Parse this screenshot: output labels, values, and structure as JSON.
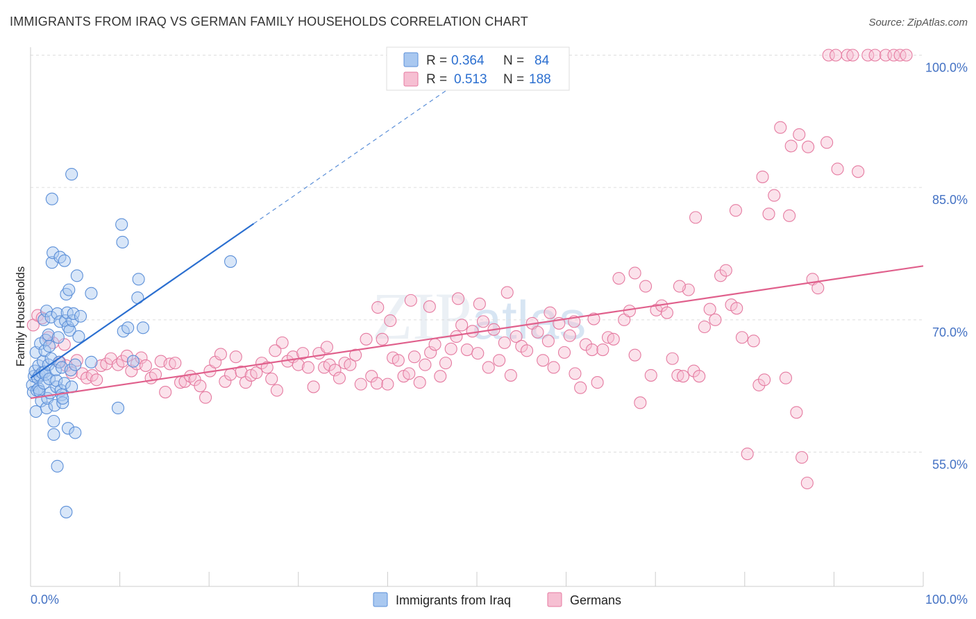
{
  "title": "IMMIGRANTS FROM IRAQ VS GERMAN FAMILY HOUSEHOLDS CORRELATION CHART",
  "source": "Source: ZipAtlas.com",
  "watermark": "ZIPatlas",
  "colors": {
    "iraq": "#5b8fd8",
    "iraq_fill": "#a9c8f0",
    "iraq_line": "#2b6fd0",
    "germans": "#e57aa0",
    "germans_fill": "#f6bfd2",
    "germans_line": "#e0608c",
    "grid": "#dddddd",
    "tick_text": "#4472c4"
  },
  "legend": {
    "iraq": {
      "r_label": "R =",
      "r_value": "0.364",
      "n_label": "N =",
      "n_value": "84"
    },
    "germans": {
      "r_label": "R =",
      "r_value": "0.513",
      "n_label": "N =",
      "n_value": "188"
    }
  },
  "bottom_legend": {
    "iraq": "Immigrants from Iraq",
    "germans": "Germans"
  },
  "chart_data": {
    "type": "scatter",
    "title": "IMMIGRANTS FROM IRAQ VS GERMAN FAMILY HOUSEHOLDS CORRELATION CHART",
    "xlabel": "",
    "ylabel": "Family Households",
    "xlim": [
      0,
      100
    ],
    "ylim": [
      40,
      101.5
    ],
    "x_tick_labels": [
      "0.0%",
      "100.0%"
    ],
    "y_ticks": [
      55,
      70,
      85,
      100
    ],
    "y_tick_labels": [
      "55.0%",
      "70.0%",
      "85.0%",
      "100.0%"
    ],
    "grid": "horizontal dashed",
    "legend_position": "top-center",
    "series": [
      {
        "name": "Immigrants from Iraq",
        "R": 0.364,
        "N": 84,
        "trend": {
          "x": [
            0,
            25
          ],
          "y": [
            63.4,
            80.9
          ],
          "dashed_extension": {
            "x": [
              25,
              50
            ],
            "y": [
              80.9,
              98.4
            ]
          }
        },
        "points": [
          [
            0.2,
            62.6
          ],
          [
            0.3,
            61.8
          ],
          [
            0.4,
            63.6
          ],
          [
            0.5,
            64.2
          ],
          [
            0.6,
            59.6
          ],
          [
            0.6,
            66.3
          ],
          [
            0.7,
            62.0
          ],
          [
            0.8,
            63.4
          ],
          [
            0.9,
            64.8
          ],
          [
            0.9,
            62.2
          ],
          [
            1.0,
            63.7
          ],
          [
            1.0,
            61.9
          ],
          [
            1.1,
            67.3
          ],
          [
            1.2,
            60.8
          ],
          [
            1.3,
            64.0
          ],
          [
            1.4,
            65.3
          ],
          [
            1.5,
            62.8
          ],
          [
            1.5,
            70.0
          ],
          [
            1.6,
            64.1
          ],
          [
            1.6,
            66.5
          ],
          [
            1.7,
            67.7
          ],
          [
            1.7,
            63.8
          ],
          [
            1.8,
            60.0
          ],
          [
            1.8,
            71.0
          ],
          [
            1.9,
            61.1
          ],
          [
            2.0,
            64.9
          ],
          [
            2.0,
            68.3
          ],
          [
            2.1,
            63.3
          ],
          [
            2.1,
            67.0
          ],
          [
            2.2,
            61.7
          ],
          [
            2.3,
            65.6
          ],
          [
            2.3,
            70.3
          ],
          [
            2.4,
            76.5
          ],
          [
            2.4,
            83.7
          ],
          [
            2.5,
            77.6
          ],
          [
            2.6,
            58.5
          ],
          [
            2.6,
            57.0
          ],
          [
            2.7,
            60.3
          ],
          [
            2.8,
            64.3
          ],
          [
            2.9,
            62.4
          ],
          [
            2.9,
            63.1
          ],
          [
            3.0,
            53.4
          ],
          [
            3.0,
            70.7
          ],
          [
            3.1,
            68.0
          ],
          [
            3.2,
            65.2
          ],
          [
            3.3,
            69.8
          ],
          [
            3.3,
            77.1
          ],
          [
            3.4,
            62.0
          ],
          [
            3.5,
            64.6
          ],
          [
            3.5,
            61.5
          ],
          [
            3.6,
            60.6
          ],
          [
            3.6,
            61.1
          ],
          [
            3.8,
            76.7
          ],
          [
            3.8,
            62.8
          ],
          [
            3.9,
            69.9
          ],
          [
            4.0,
            48.2
          ],
          [
            4.0,
            72.9
          ],
          [
            4.1,
            70.8
          ],
          [
            4.2,
            57.7
          ],
          [
            4.2,
            69.2
          ],
          [
            4.3,
            73.4
          ],
          [
            4.4,
            68.8
          ],
          [
            4.5,
            64.3
          ],
          [
            4.6,
            62.4
          ],
          [
            4.6,
            86.5
          ],
          [
            4.7,
            69.9
          ],
          [
            4.8,
            70.7
          ],
          [
            5.0,
            57.2
          ],
          [
            5.0,
            64.9
          ],
          [
            5.2,
            75.0
          ],
          [
            5.4,
            68.1
          ],
          [
            5.6,
            70.4
          ],
          [
            6.8,
            73.0
          ],
          [
            6.8,
            65.2
          ],
          [
            9.8,
            60.0
          ],
          [
            10.2,
            80.8
          ],
          [
            10.3,
            78.8
          ],
          [
            10.4,
            68.7
          ],
          [
            10.9,
            69.1
          ],
          [
            11.5,
            65.3
          ],
          [
            12.0,
            72.5
          ],
          [
            12.1,
            74.6
          ],
          [
            12.6,
            69.1
          ],
          [
            22.4,
            76.6
          ]
        ]
      },
      {
        "name": "Germans",
        "R": 0.513,
        "N": 188,
        "trend": {
          "x": [
            0,
            100
          ],
          "y": [
            61.1,
            76.1
          ]
        },
        "points": [
          [
            0.3,
            69.4
          ],
          [
            0.8,
            70.5
          ],
          [
            1.3,
            70.2
          ],
          [
            2.0,
            68.0
          ],
          [
            2.5,
            67.4
          ],
          [
            3.3,
            65.2
          ],
          [
            3.8,
            67.2
          ],
          [
            4.0,
            64.8
          ],
          [
            4.6,
            64.0
          ],
          [
            5.2,
            65.4
          ],
          [
            5.8,
            63.9
          ],
          [
            6.3,
            63.4
          ],
          [
            6.9,
            63.7
          ],
          [
            7.4,
            63.2
          ],
          [
            7.9,
            64.8
          ],
          [
            8.5,
            65.0
          ],
          [
            9.0,
            65.6
          ],
          [
            9.8,
            64.9
          ],
          [
            10.3,
            65.3
          ],
          [
            10.8,
            65.9
          ],
          [
            11.3,
            64.2
          ],
          [
            11.9,
            65.0
          ],
          [
            12.4,
            65.7
          ],
          [
            12.9,
            64.8
          ],
          [
            13.5,
            63.4
          ],
          [
            14.0,
            63.8
          ],
          [
            14.6,
            65.3
          ],
          [
            15.1,
            61.8
          ],
          [
            15.6,
            65.0
          ],
          [
            16.2,
            65.1
          ],
          [
            16.8,
            62.9
          ],
          [
            17.3,
            63.0
          ],
          [
            17.9,
            63.6
          ],
          [
            18.4,
            63.2
          ],
          [
            19.0,
            62.5
          ],
          [
            19.6,
            61.2
          ],
          [
            20.1,
            64.2
          ],
          [
            20.7,
            65.2
          ],
          [
            21.3,
            66.1
          ],
          [
            21.8,
            63.0
          ],
          [
            22.4,
            63.8
          ],
          [
            23.0,
            65.8
          ],
          [
            23.6,
            64.1
          ],
          [
            24.1,
            62.9
          ],
          [
            24.7,
            63.7
          ],
          [
            25.3,
            64.0
          ],
          [
            25.9,
            65.1
          ],
          [
            26.5,
            64.6
          ],
          [
            27.0,
            63.3
          ],
          [
            27.6,
            62.0
          ],
          [
            28.2,
            67.4
          ],
          [
            28.8,
            65.3
          ],
          [
            29.4,
            65.8
          ],
          [
            30.0,
            64.9
          ],
          [
            30.5,
            66.2
          ],
          [
            31.1,
            64.6
          ],
          [
            31.7,
            62.4
          ],
          [
            32.3,
            66.2
          ],
          [
            32.9,
            64.6
          ],
          [
            33.5,
            64.9
          ],
          [
            34.1,
            64.3
          ],
          [
            34.6,
            63.4
          ],
          [
            35.2,
            65.1
          ],
          [
            35.8,
            64.9
          ],
          [
            36.4,
            66.0
          ],
          [
            37.0,
            62.7
          ],
          [
            37.6,
            67.8
          ],
          [
            38.2,
            63.6
          ],
          [
            38.8,
            62.8
          ],
          [
            39.4,
            67.8
          ],
          [
            40.0,
            62.7
          ],
          [
            40.6,
            65.7
          ],
          [
            41.2,
            65.4
          ],
          [
            41.8,
            63.6
          ],
          [
            42.4,
            63.9
          ],
          [
            43.0,
            65.8
          ],
          [
            43.6,
            62.9
          ],
          [
            44.2,
            64.9
          ],
          [
            44.8,
            66.3
          ],
          [
            45.3,
            67.2
          ],
          [
            45.9,
            63.6
          ],
          [
            46.5,
            65.1
          ],
          [
            47.1,
            66.7
          ],
          [
            47.7,
            68.1
          ],
          [
            48.3,
            69.4
          ],
          [
            48.9,
            66.6
          ],
          [
            49.5,
            68.7
          ],
          [
            50.1,
            66.2
          ],
          [
            50.7,
            69.8
          ],
          [
            51.3,
            64.6
          ],
          [
            51.9,
            68.9
          ],
          [
            52.5,
            65.4
          ],
          [
            53.1,
            67.4
          ],
          [
            53.8,
            63.7
          ],
          [
            54.4,
            68.1
          ],
          [
            55.0,
            67.0
          ],
          [
            55.6,
            66.5
          ],
          [
            56.2,
            69.6
          ],
          [
            56.8,
            68.6
          ],
          [
            57.4,
            65.4
          ],
          [
            58.0,
            67.6
          ],
          [
            58.6,
            64.6
          ],
          [
            59.2,
            69.6
          ],
          [
            59.8,
            66.3
          ],
          [
            60.4,
            68.2
          ],
          [
            61.0,
            63.9
          ],
          [
            61.6,
            62.3
          ],
          [
            62.2,
            67.2
          ],
          [
            62.9,
            66.6
          ],
          [
            63.5,
            62.9
          ],
          [
            64.1,
            66.6
          ],
          [
            64.7,
            68.0
          ],
          [
            65.3,
            67.8
          ],
          [
            65.9,
            74.7
          ],
          [
            66.5,
            70.0
          ],
          [
            67.1,
            71.0
          ],
          [
            67.7,
            66.0
          ],
          [
            68.3,
            60.6
          ],
          [
            68.9,
            73.8
          ],
          [
            69.5,
            63.7
          ],
          [
            70.1,
            71.1
          ],
          [
            70.7,
            71.6
          ],
          [
            71.3,
            70.8
          ],
          [
            71.9,
            65.6
          ],
          [
            72.5,
            63.7
          ],
          [
            73.1,
            63.6
          ],
          [
            73.7,
            73.4
          ],
          [
            74.3,
            64.2
          ],
          [
            74.9,
            63.6
          ],
          [
            75.5,
            69.2
          ],
          [
            76.1,
            71.2
          ],
          [
            76.7,
            70.0
          ],
          [
            77.3,
            75.0
          ],
          [
            77.9,
            75.6
          ],
          [
            78.5,
            71.7
          ],
          [
            79.1,
            71.3
          ],
          [
            79.7,
            68.0
          ],
          [
            80.3,
            54.8
          ],
          [
            81.0,
            67.6
          ],
          [
            81.6,
            62.6
          ],
          [
            82.2,
            63.2
          ],
          [
            82.7,
            82.0
          ],
          [
            83.3,
            84.1
          ],
          [
            84.0,
            91.8
          ],
          [
            84.6,
            63.4
          ],
          [
            85.2,
            89.7
          ],
          [
            85.8,
            59.5
          ],
          [
            86.4,
            54.4
          ],
          [
            87.0,
            51.5
          ],
          [
            87.6,
            74.6
          ],
          [
            88.2,
            73.6
          ],
          [
            74.5,
            81.6
          ],
          [
            67.7,
            75.3
          ],
          [
            72.7,
            73.8
          ],
          [
            79.0,
            82.4
          ],
          [
            82.0,
            86.2
          ],
          [
            85.0,
            81.8
          ],
          [
            86.1,
            91.0
          ],
          [
            87.1,
            89.6
          ],
          [
            89.2,
            90.1
          ],
          [
            90.4,
            87.1
          ],
          [
            92.7,
            86.8
          ],
          [
            89.4,
            100.0
          ],
          [
            90.2,
            100.0
          ],
          [
            91.5,
            100.0
          ],
          [
            92.1,
            100.0
          ],
          [
            93.8,
            100.0
          ],
          [
            94.6,
            100.0
          ],
          [
            95.8,
            100.0
          ],
          [
            96.7,
            100.0
          ],
          [
            97.4,
            100.0
          ],
          [
            98.1,
            100.0
          ],
          [
            38.9,
            71.4
          ],
          [
            40.3,
            69.9
          ],
          [
            42.6,
            72.2
          ],
          [
            44.7,
            71.5
          ],
          [
            47.9,
            72.4
          ],
          [
            50.3,
            71.8
          ],
          [
            53.4,
            73.1
          ],
          [
            58.2,
            70.8
          ],
          [
            60.9,
            69.8
          ],
          [
            63.1,
            70.1
          ],
          [
            27.4,
            66.5
          ],
          [
            33.2,
            66.9
          ]
        ]
      }
    ]
  }
}
